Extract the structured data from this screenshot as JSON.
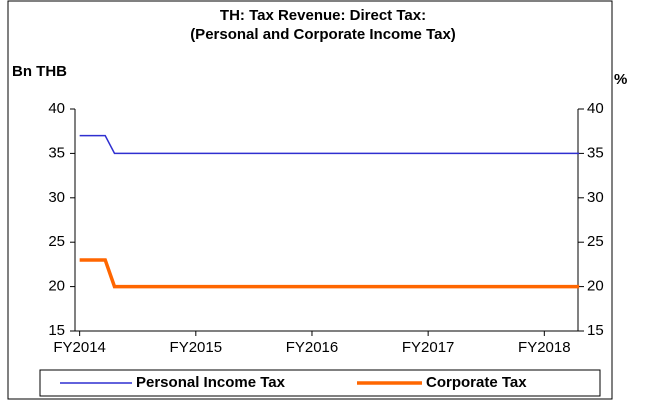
{
  "chart_data": {
    "type": "line",
    "title": [
      "TH: Tax Revenue: Direct Tax:",
      "(Personal and Corporate Income Tax)"
    ],
    "y_label": "Bn THB",
    "y2_label": "%",
    "x": [
      2014,
      2014.22,
      2014.3,
      2018.3
    ],
    "xlim": [
      2013.96,
      2018.29
    ],
    "xticks": [
      {
        "value": 2014,
        "label": "FY2014"
      },
      {
        "value": 2015,
        "label": "FY2015"
      },
      {
        "value": 2016,
        "label": "FY2016"
      },
      {
        "value": 2017,
        "label": "FY2017"
      },
      {
        "value": 2018,
        "label": "FY2018"
      }
    ],
    "ylim": [
      15,
      40
    ],
    "yticks": [
      15,
      20,
      25,
      30,
      35,
      40
    ],
    "y2lim": [
      15,
      40
    ],
    "y2ticks": [
      15,
      20,
      25,
      30,
      35,
      40
    ],
    "series": [
      {
        "name": "Personal Income Tax",
        "color": "#2f2fd0",
        "width": 1.5,
        "values": [
          37,
          37,
          35,
          35
        ]
      },
      {
        "name": "Corporate Tax",
        "color": "#ff6600",
        "width": 3.5,
        "values": [
          23,
          23,
          20,
          20
        ]
      }
    ]
  }
}
